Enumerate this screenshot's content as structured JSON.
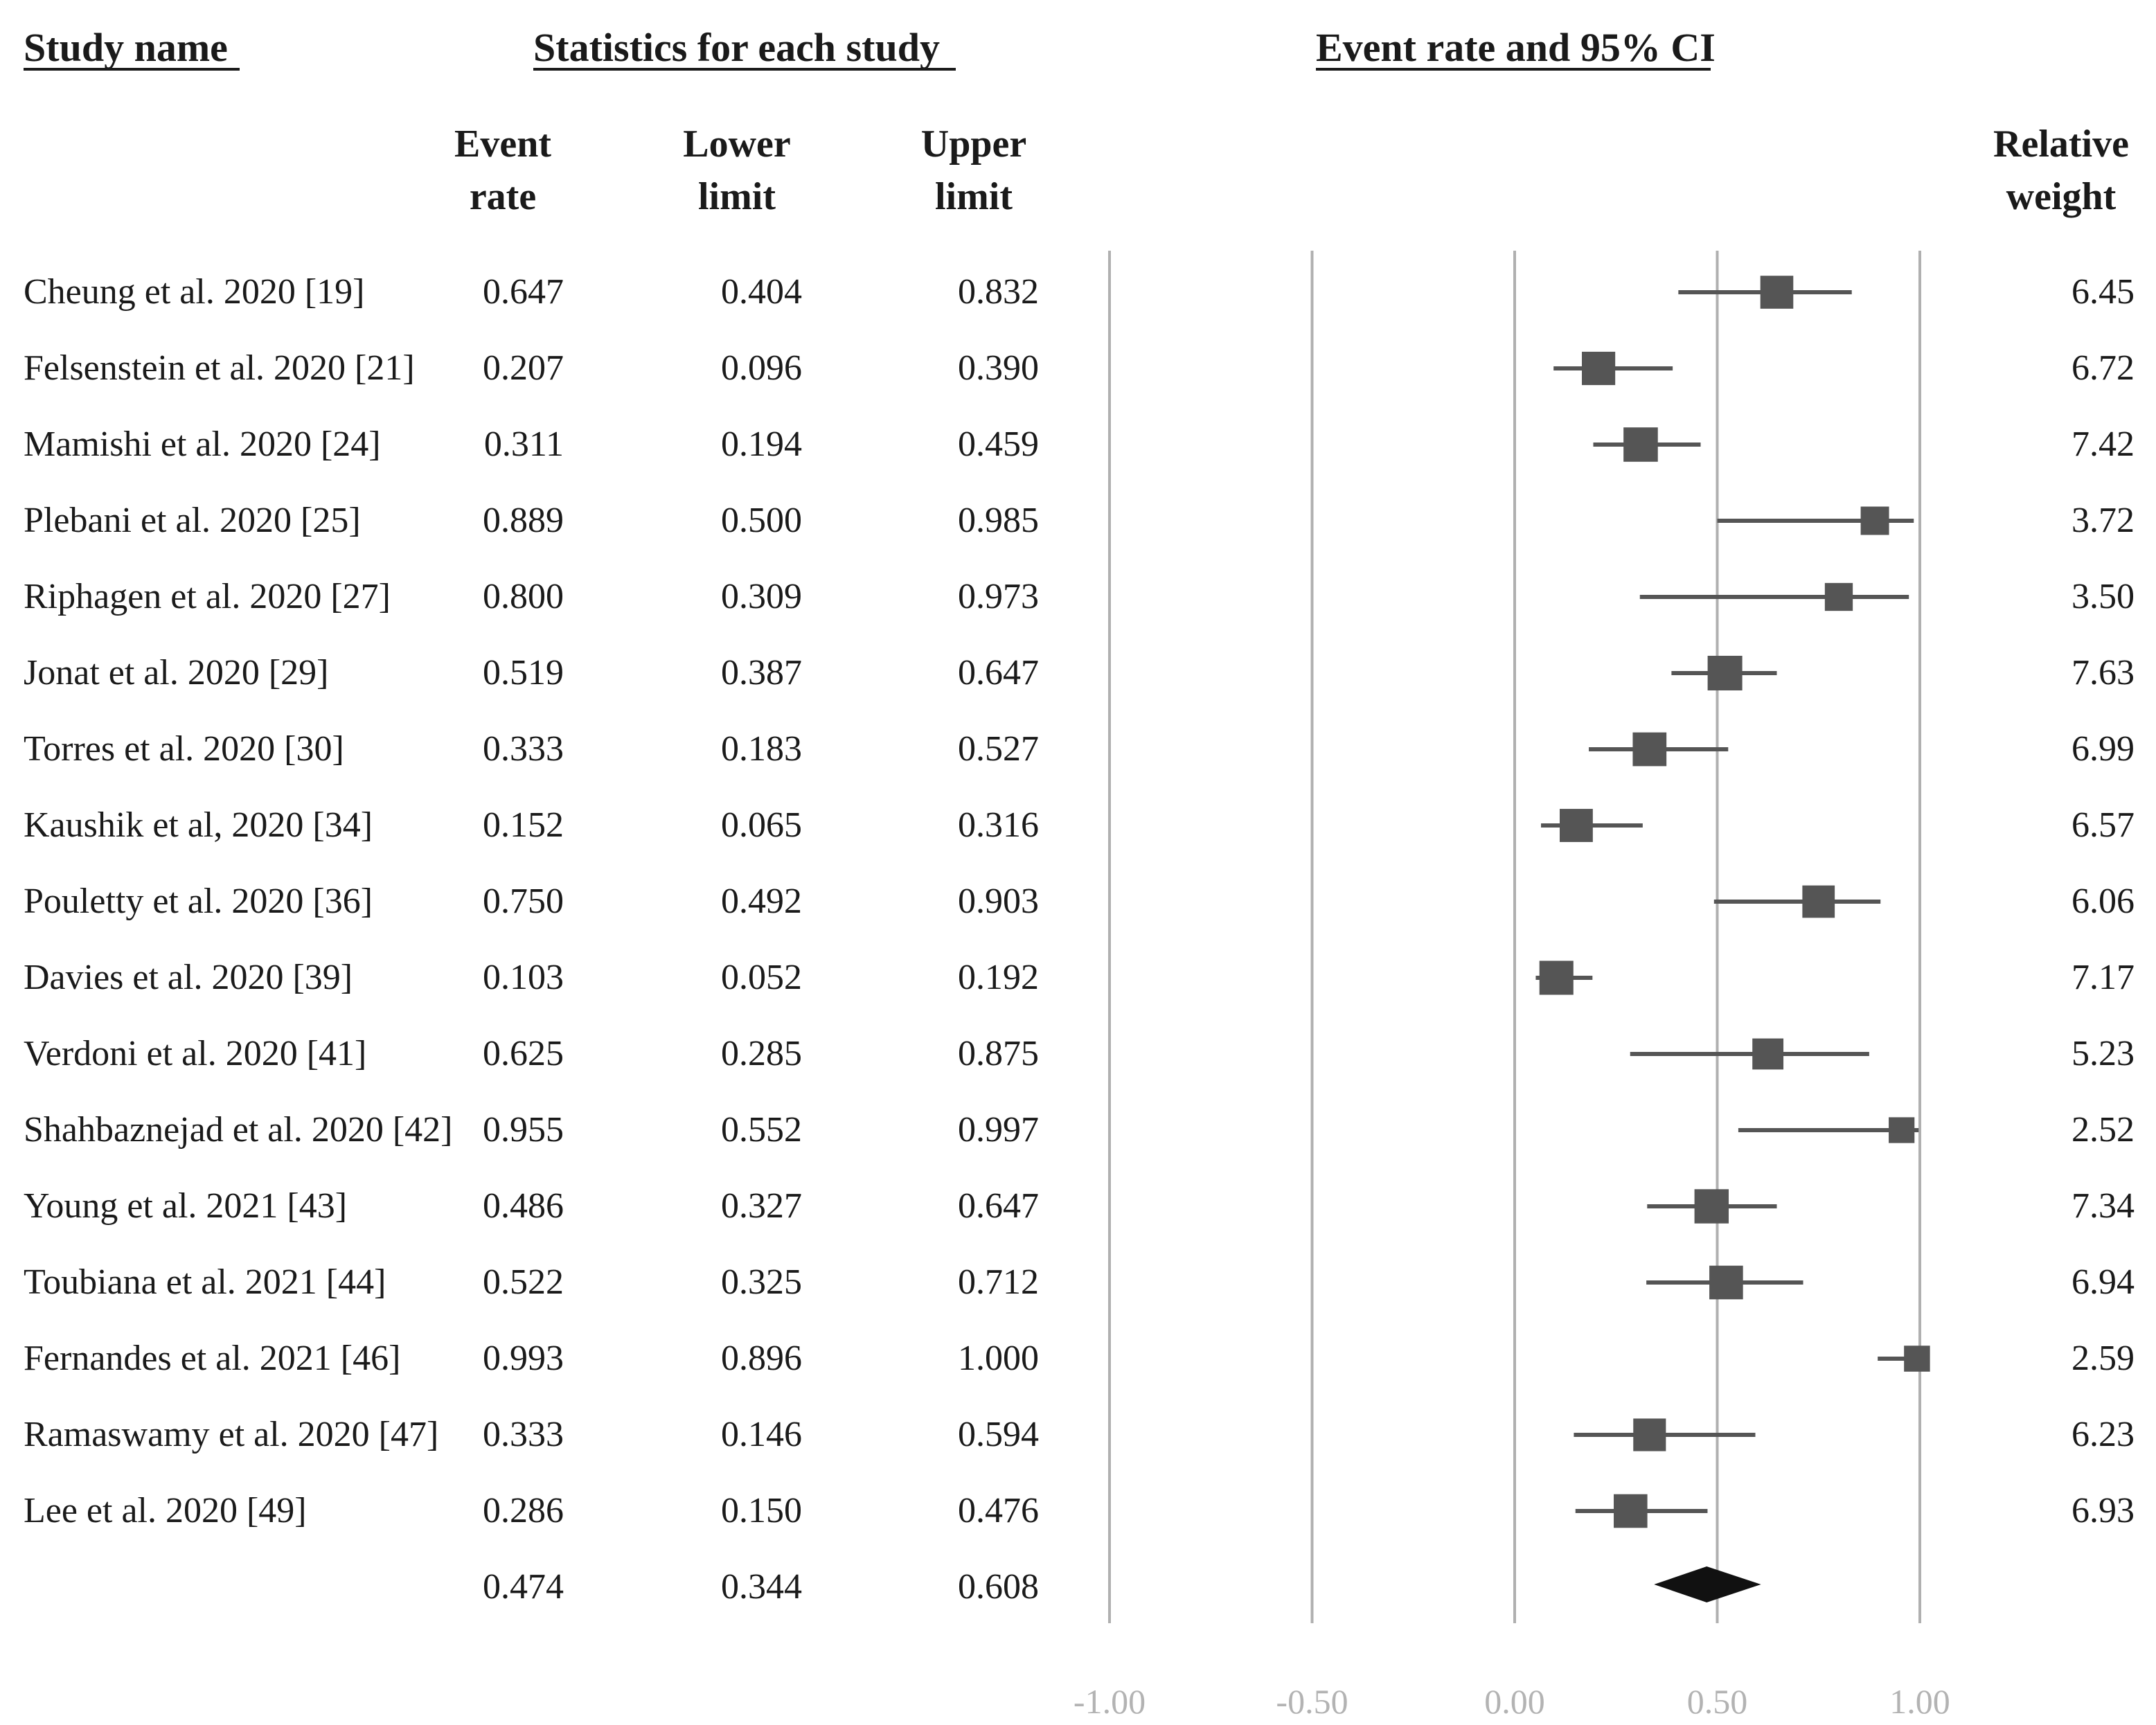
{
  "headers": {
    "study_name": "Study name",
    "statistics": "Statistics for each study",
    "plot": "Event rate and 95% CI",
    "event_rate": [
      "Event",
      "rate"
    ],
    "lower_limit": [
      "Lower",
      "limit"
    ],
    "upper_limit": [
      "Upper",
      "limit"
    ],
    "relative_weight": [
      "Relative",
      "weight"
    ]
  },
  "studies": [
    {
      "name": "Cheung et al. 2020 [19]",
      "event_rate": "0.647",
      "lower": "0.404",
      "upper": "0.832",
      "weight": "6.45"
    },
    {
      "name": "Felsenstein et al. 2020 [21]",
      "event_rate": "0.207",
      "lower": "0.096",
      "upper": "0.390",
      "weight": "6.72"
    },
    {
      "name": "Mamishi et al. 2020 [24]",
      "event_rate": "0.311",
      "lower": "0.194",
      "upper": "0.459",
      "weight": "7.42"
    },
    {
      "name": "Plebani et al. 2020 [25]",
      "event_rate": "0.889",
      "lower": "0.500",
      "upper": "0.985",
      "weight": "3.72"
    },
    {
      "name": "Riphagen et al. 2020 [27]",
      "event_rate": "0.800",
      "lower": "0.309",
      "upper": "0.973",
      "weight": "3.50"
    },
    {
      "name": "Jonat et al. 2020 [29]",
      "event_rate": "0.519",
      "lower": "0.387",
      "upper": "0.647",
      "weight": "7.63"
    },
    {
      "name": "Torres et al. 2020 [30]",
      "event_rate": "0.333",
      "lower": "0.183",
      "upper": "0.527",
      "weight": "6.99"
    },
    {
      "name": "Kaushik et al, 2020 [34]",
      "event_rate": "0.152",
      "lower": "0.065",
      "upper": "0.316",
      "weight": "6.57"
    },
    {
      "name": "Pouletty et al. 2020 [36]",
      "event_rate": "0.750",
      "lower": "0.492",
      "upper": "0.903",
      "weight": "6.06"
    },
    {
      "name": "Davies et al. 2020 [39]",
      "event_rate": "0.103",
      "lower": "0.052",
      "upper": "0.192",
      "weight": "7.17"
    },
    {
      "name": "Verdoni et al. 2020 [41]",
      "event_rate": "0.625",
      "lower": "0.285",
      "upper": "0.875",
      "weight": "5.23"
    },
    {
      "name": "Shahbaznejad et al. 2020 [42]",
      "event_rate": "0.955",
      "lower": "0.552",
      "upper": "0.997",
      "weight": "2.52"
    },
    {
      "name": "Young et al. 2021 [43]",
      "event_rate": "0.486",
      "lower": "0.327",
      "upper": "0.647",
      "weight": "7.34"
    },
    {
      "name": "Toubiana et al. 2021 [44]",
      "event_rate": "0.522",
      "lower": "0.325",
      "upper": "0.712",
      "weight": "6.94"
    },
    {
      "name": "Fernandes et al. 2021 [46]",
      "event_rate": "0.993",
      "lower": "0.896",
      "upper": "1.000",
      "weight": "2.59"
    },
    {
      "name": "Ramaswamy et al. 2020 [47]",
      "event_rate": "0.333",
      "lower": "0.146",
      "upper": "0.594",
      "weight": "6.23"
    },
    {
      "name": "Lee et al. 2020 [49]",
      "event_rate": "0.286",
      "lower": "0.150",
      "upper": "0.476",
      "weight": "6.93"
    }
  ],
  "pooled": {
    "event_rate": "0.474",
    "lower": "0.344",
    "upper": "0.608"
  },
  "colors": {
    "marker": "#555555",
    "pooled": "#111111",
    "gridline": "#b0b0b0",
    "tick": "#b3b3b3"
  },
  "chart_data": {
    "type": "forest",
    "title": "Event rate and 95% CI",
    "x_ticks": [
      "-1.00",
      "-0.50",
      "0.00",
      "0.50",
      "1.00"
    ],
    "xlim": [
      -1.0,
      1.0
    ],
    "categories": [
      "Cheung et al. 2020 [19]",
      "Felsenstein et al. 2020 [21]",
      "Mamishi et al. 2020 [24]",
      "Plebani et al. 2020 [25]",
      "Riphagen et al. 2020 [27]",
      "Jonat et al. 2020 [29]",
      "Torres et al. 2020 [30]",
      "Kaushik et al, 2020 [34]",
      "Pouletty et al. 2020 [36]",
      "Davies et al. 2020 [39]",
      "Verdoni et al. 2020 [41]",
      "Shahbaznejad et al. 2020 [42]",
      "Young et al. 2021 [43]",
      "Toubiana et al. 2021 [44]",
      "Fernandes et al. 2021 [46]",
      "Ramaswamy et al. 2020 [47]",
      "Lee et al. 2020 [49]"
    ],
    "estimates": [
      0.647,
      0.207,
      0.311,
      0.889,
      0.8,
      0.519,
      0.333,
      0.152,
      0.75,
      0.103,
      0.625,
      0.955,
      0.486,
      0.522,
      0.993,
      0.333,
      0.286
    ],
    "lower": [
      0.404,
      0.096,
      0.194,
      0.5,
      0.309,
      0.387,
      0.183,
      0.065,
      0.492,
      0.052,
      0.285,
      0.552,
      0.327,
      0.325,
      0.896,
      0.146,
      0.15
    ],
    "upper": [
      0.832,
      0.39,
      0.459,
      0.985,
      0.973,
      0.647,
      0.527,
      0.316,
      0.903,
      0.192,
      0.875,
      0.997,
      0.647,
      0.712,
      1.0,
      0.594,
      0.476
    ],
    "weights": [
      6.45,
      6.72,
      7.42,
      3.72,
      3.5,
      7.63,
      6.99,
      6.57,
      6.06,
      7.17,
      5.23,
      2.52,
      7.34,
      6.94,
      2.59,
      6.23,
      6.93
    ],
    "pooled": {
      "estimate": 0.474,
      "lower": 0.344,
      "upper": 0.608
    },
    "grid": true
  }
}
